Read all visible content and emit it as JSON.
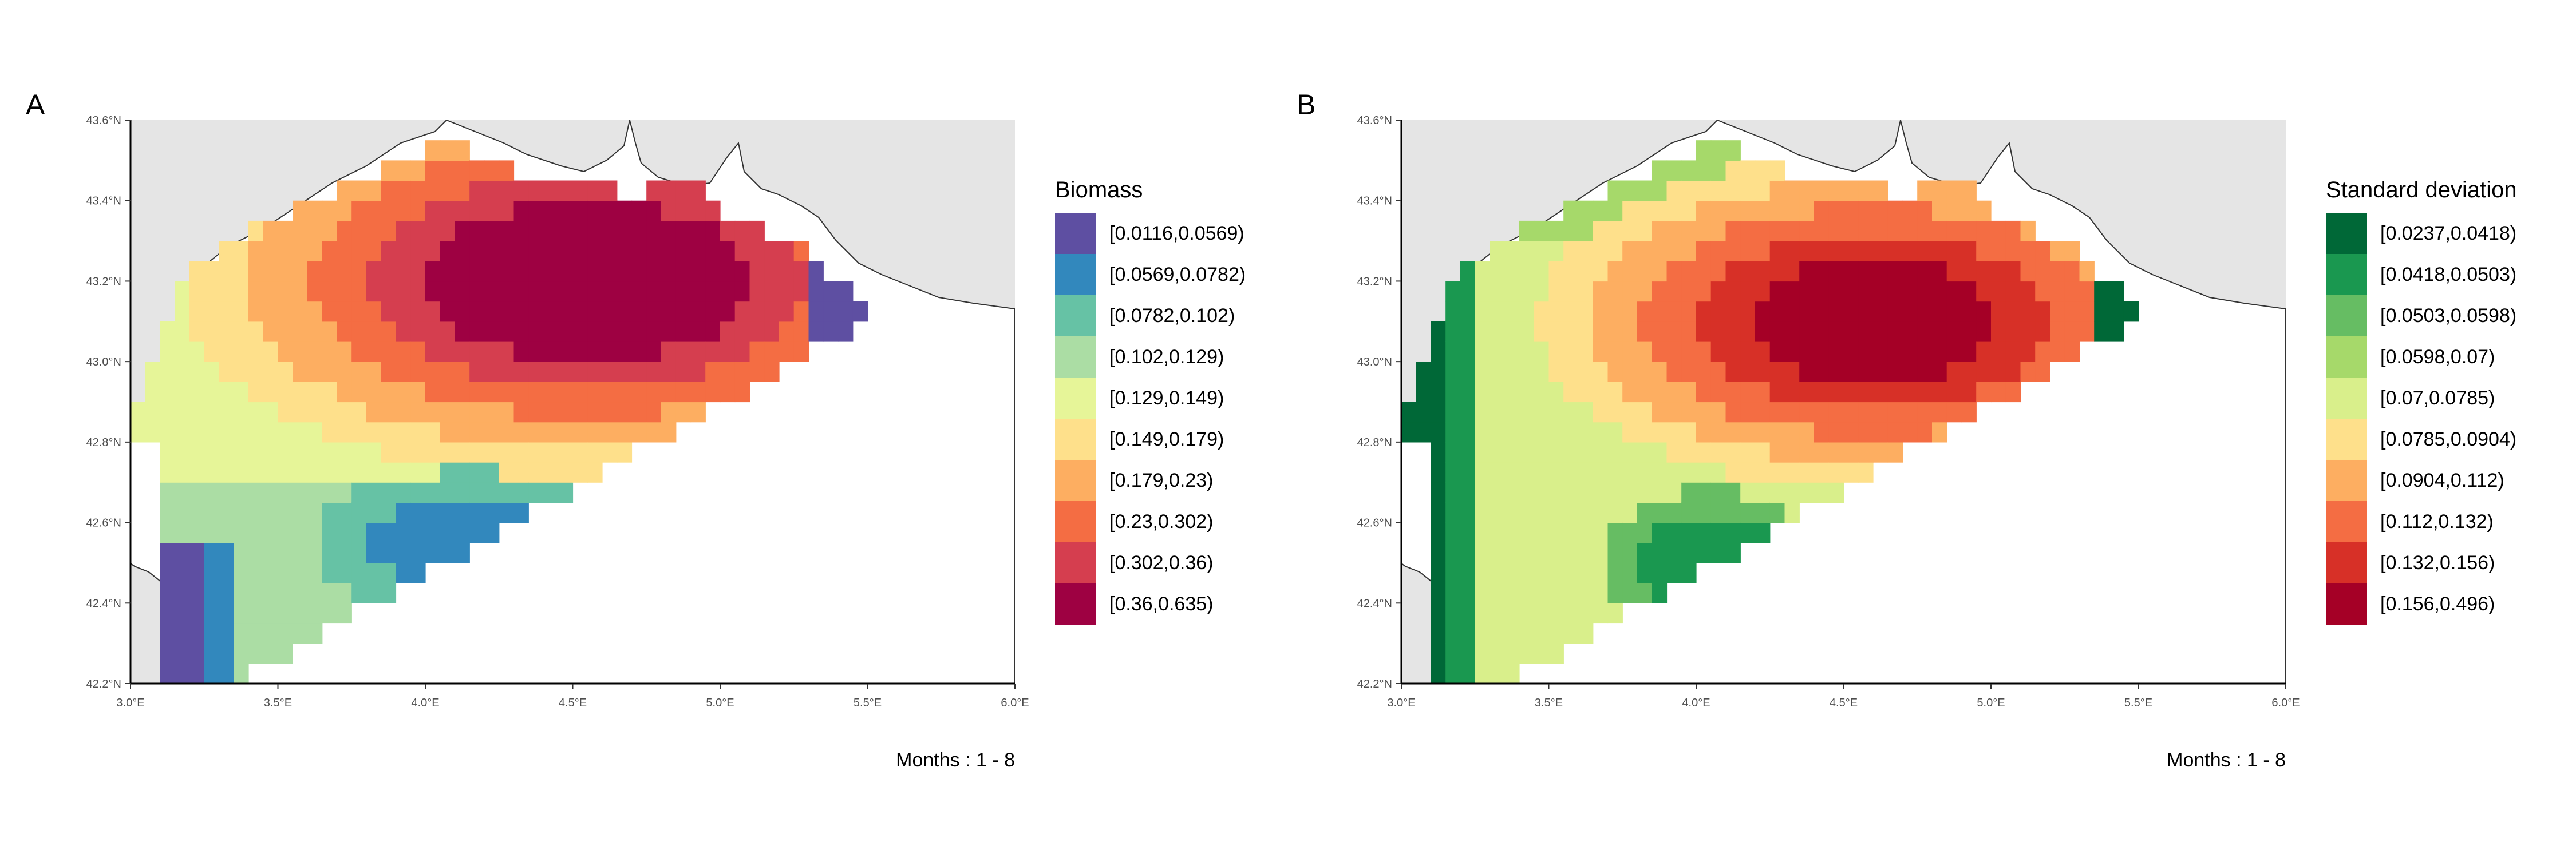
{
  "panels": [
    {
      "tag": "A",
      "legend_title": "Biomass",
      "caption": "Months : 1 - 8",
      "legend_items": [
        {
          "label": "[0.0116,0.0569)",
          "color": "#5E4FA2"
        },
        {
          "label": "[0.0569,0.0782)",
          "color": "#3288BD"
        },
        {
          "label": "[0.0782,0.102)",
          "color": "#66C2A5"
        },
        {
          "label": "[0.102,0.129)",
          "color": "#ABDDA4"
        },
        {
          "label": "[0.129,0.149)",
          "color": "#E6F598"
        },
        {
          "label": "[0.149,0.179)",
          "color": "#FEE08B"
        },
        {
          "label": "[0.179,0.23)",
          "color": "#FDAE61"
        },
        {
          "label": "[0.23,0.302)",
          "color": "#F46D43"
        },
        {
          "label": "[0.302,0.36)",
          "color": "#D53E4F"
        },
        {
          "label": "[0.36,0.635)",
          "color": "#9E0142"
        }
      ]
    },
    {
      "tag": "B",
      "legend_title": "Standard deviation",
      "caption": "Months : 1 - 8",
      "legend_items": [
        {
          "label": "[0.0237,0.0418)",
          "color": "#006837"
        },
        {
          "label": "[0.0418,0.0503)",
          "color": "#1A9850"
        },
        {
          "label": "[0.0503,0.0598)",
          "color": "#66BD63"
        },
        {
          "label": "[0.0598,0.07)",
          "color": "#A6D96A"
        },
        {
          "label": "[0.07,0.0785)",
          "color": "#D9EF8B"
        },
        {
          "label": "[0.0785,0.0904)",
          "color": "#FEE08B"
        },
        {
          "label": "[0.0904,0.112)",
          "color": "#FDAE61"
        },
        {
          "label": "[0.112,0.132)",
          "color": "#F46D43"
        },
        {
          "label": "[0.132,0.156)",
          "color": "#D73027"
        },
        {
          "label": "[0.156,0.496)",
          "color": "#A50026"
        }
      ]
    }
  ],
  "axes": {
    "x_ticks": [
      "3.0°E",
      "3.5°E",
      "4.0°E",
      "4.5°E",
      "5.0°E",
      "5.5°E",
      "6.0°E"
    ],
    "y_ticks": [
      "42.2°N",
      "42.4°N",
      "42.6°N",
      "42.8°N",
      "43.0°N",
      "43.2°N",
      "43.4°N",
      "43.6°N"
    ]
  },
  "colors": {
    "land": "#E5E5E5",
    "coast": "#333333",
    "axis": "#000000"
  }
}
